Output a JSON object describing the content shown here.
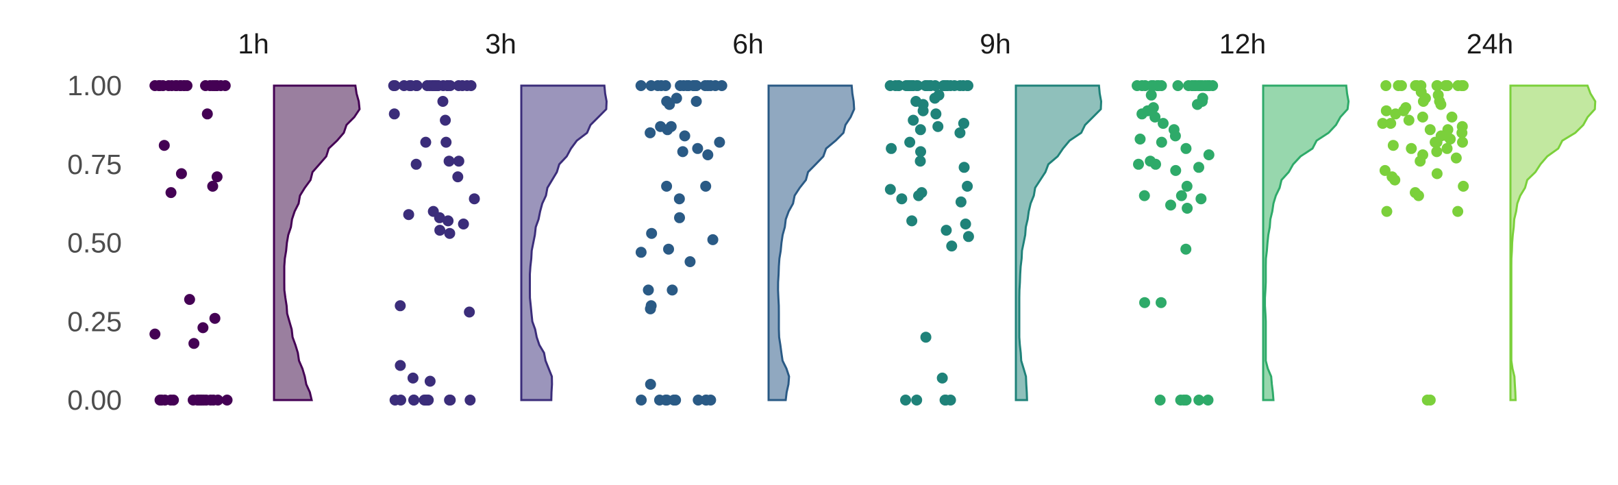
{
  "chart_data": {
    "type": "scatter",
    "subtype": "raincloud",
    "title": "",
    "xlabel": "",
    "ylabel": "",
    "ylim": [
      0,
      1
    ],
    "y_ticks": [
      "0.00",
      "0.25",
      "0.50",
      "0.75",
      "1.00"
    ],
    "grid": false,
    "legend": "none",
    "panels": [
      {
        "label": "1h",
        "color": "#440154",
        "fill": "#9a7f9f",
        "points": {
          "0.00": 16,
          "1.00": 22,
          "others": [
            0.91,
            0.81,
            0.72,
            0.71,
            0.68,
            0.66,
            0.32,
            0.26,
            0.23,
            0.21,
            0.18
          ]
        },
        "density_profile": [
          0.44,
          0.36,
          0.28,
          0.21,
          0.15,
          0.12,
          0.12,
          0.15,
          0.21,
          0.3,
          0.44,
          0.62,
          0.82,
          1.0,
          0.95
        ]
      },
      {
        "label": "3h",
        "color": "#3b2d7a",
        "fill": "#9b95bb",
        "points": {
          "0.00": 12,
          "1.00": 24,
          "others": [
            0.95,
            0.91,
            0.89,
            0.82,
            0.82,
            0.76,
            0.76,
            0.75,
            0.71,
            0.64,
            0.6,
            0.59,
            0.58,
            0.57,
            0.56,
            0.54,
            0.53,
            0.3,
            0.28,
            0.11,
            0.07,
            0.06
          ]
        },
        "density_profile": [
          0.35,
          0.36,
          0.28,
          0.18,
          0.12,
          0.1,
          0.1,
          0.12,
          0.16,
          0.22,
          0.3,
          0.42,
          0.58,
          0.8,
          1.0,
          0.97
        ]
      },
      {
        "label": "6h",
        "color": "#2a5a85",
        "fill": "#90a8c0",
        "points": {
          "0.00": 10,
          "1.00": 20,
          "others": [
            0.96,
            0.95,
            0.95,
            0.94,
            0.87,
            0.87,
            0.86,
            0.85,
            0.84,
            0.82,
            0.8,
            0.79,
            0.78,
            0.68,
            0.68,
            0.64,
            0.58,
            0.53,
            0.51,
            0.48,
            0.47,
            0.44,
            0.35,
            0.35,
            0.3,
            0.29,
            0.05
          ]
        },
        "density_profile": [
          0.2,
          0.24,
          0.15,
          0.12,
          0.12,
          0.11,
          0.12,
          0.15,
          0.2,
          0.3,
          0.45,
          0.65,
          0.88,
          1.0,
          0.97
        ]
      },
      {
        "label": "9h",
        "color": "#1f8279",
        "fill": "#8fc0bb",
        "points": {
          "0.00": 5,
          "1.00": 30,
          "others": [
            0.97,
            0.96,
            0.95,
            0.94,
            0.92,
            0.91,
            0.89,
            0.88,
            0.88,
            0.87,
            0.86,
            0.85,
            0.82,
            0.8,
            0.79,
            0.76,
            0.74,
            0.68,
            0.67,
            0.66,
            0.65,
            0.64,
            0.63,
            0.57,
            0.56,
            0.54,
            0.52,
            0.49,
            0.2,
            0.07
          ]
        },
        "density_profile": [
          0.13,
          0.12,
          0.06,
          0.04,
          0.04,
          0.04,
          0.05,
          0.07,
          0.11,
          0.15,
          0.22,
          0.35,
          0.55,
          0.8,
          1.0,
          0.97
        ]
      },
      {
        "label": "12h",
        "color": "#2eaa69",
        "fill": "#97d7ad",
        "points": {
          "0.00": 6,
          "1.00": 22,
          "others": [
            0.97,
            0.96,
            0.95,
            0.94,
            0.93,
            0.92,
            0.91,
            0.9,
            0.88,
            0.86,
            0.84,
            0.83,
            0.82,
            0.8,
            0.78,
            0.76,
            0.75,
            0.75,
            0.74,
            0.73,
            0.68,
            0.65,
            0.65,
            0.64,
            0.62,
            0.61,
            0.48,
            0.31,
            0.31
          ]
        },
        "density_profile": [
          0.12,
          0.1,
          0.03,
          0.03,
          0.03,
          0.02,
          0.03,
          0.03,
          0.05,
          0.08,
          0.12,
          0.2,
          0.35,
          0.6,
          0.85,
          1.0,
          0.97
        ]
      },
      {
        "label": "24h",
        "color": "#7bd03b",
        "fill": "#c2e8a0",
        "points": {
          "0.00": 2,
          "1.00": 14,
          "others": [
            0.98,
            0.97,
            0.96,
            0.95,
            0.95,
            0.94,
            0.93,
            0.92,
            0.92,
            0.91,
            0.9,
            0.9,
            0.89,
            0.88,
            0.88,
            0.87,
            0.86,
            0.86,
            0.85,
            0.84,
            0.84,
            0.83,
            0.82,
            0.82,
            0.82,
            0.81,
            0.8,
            0.8,
            0.79,
            0.78,
            0.77,
            0.76,
            0.73,
            0.72,
            0.71,
            0.7,
            0.68,
            0.66,
            0.65,
            0.6,
            0.6
          ]
        },
        "density_profile": [
          0.06,
          0.05,
          0.01,
          0.01,
          0.01,
          0.01,
          0.01,
          0.01,
          0.02,
          0.04,
          0.08,
          0.18,
          0.35,
          0.58,
          0.85,
          1.0,
          0.9
        ]
      }
    ]
  }
}
